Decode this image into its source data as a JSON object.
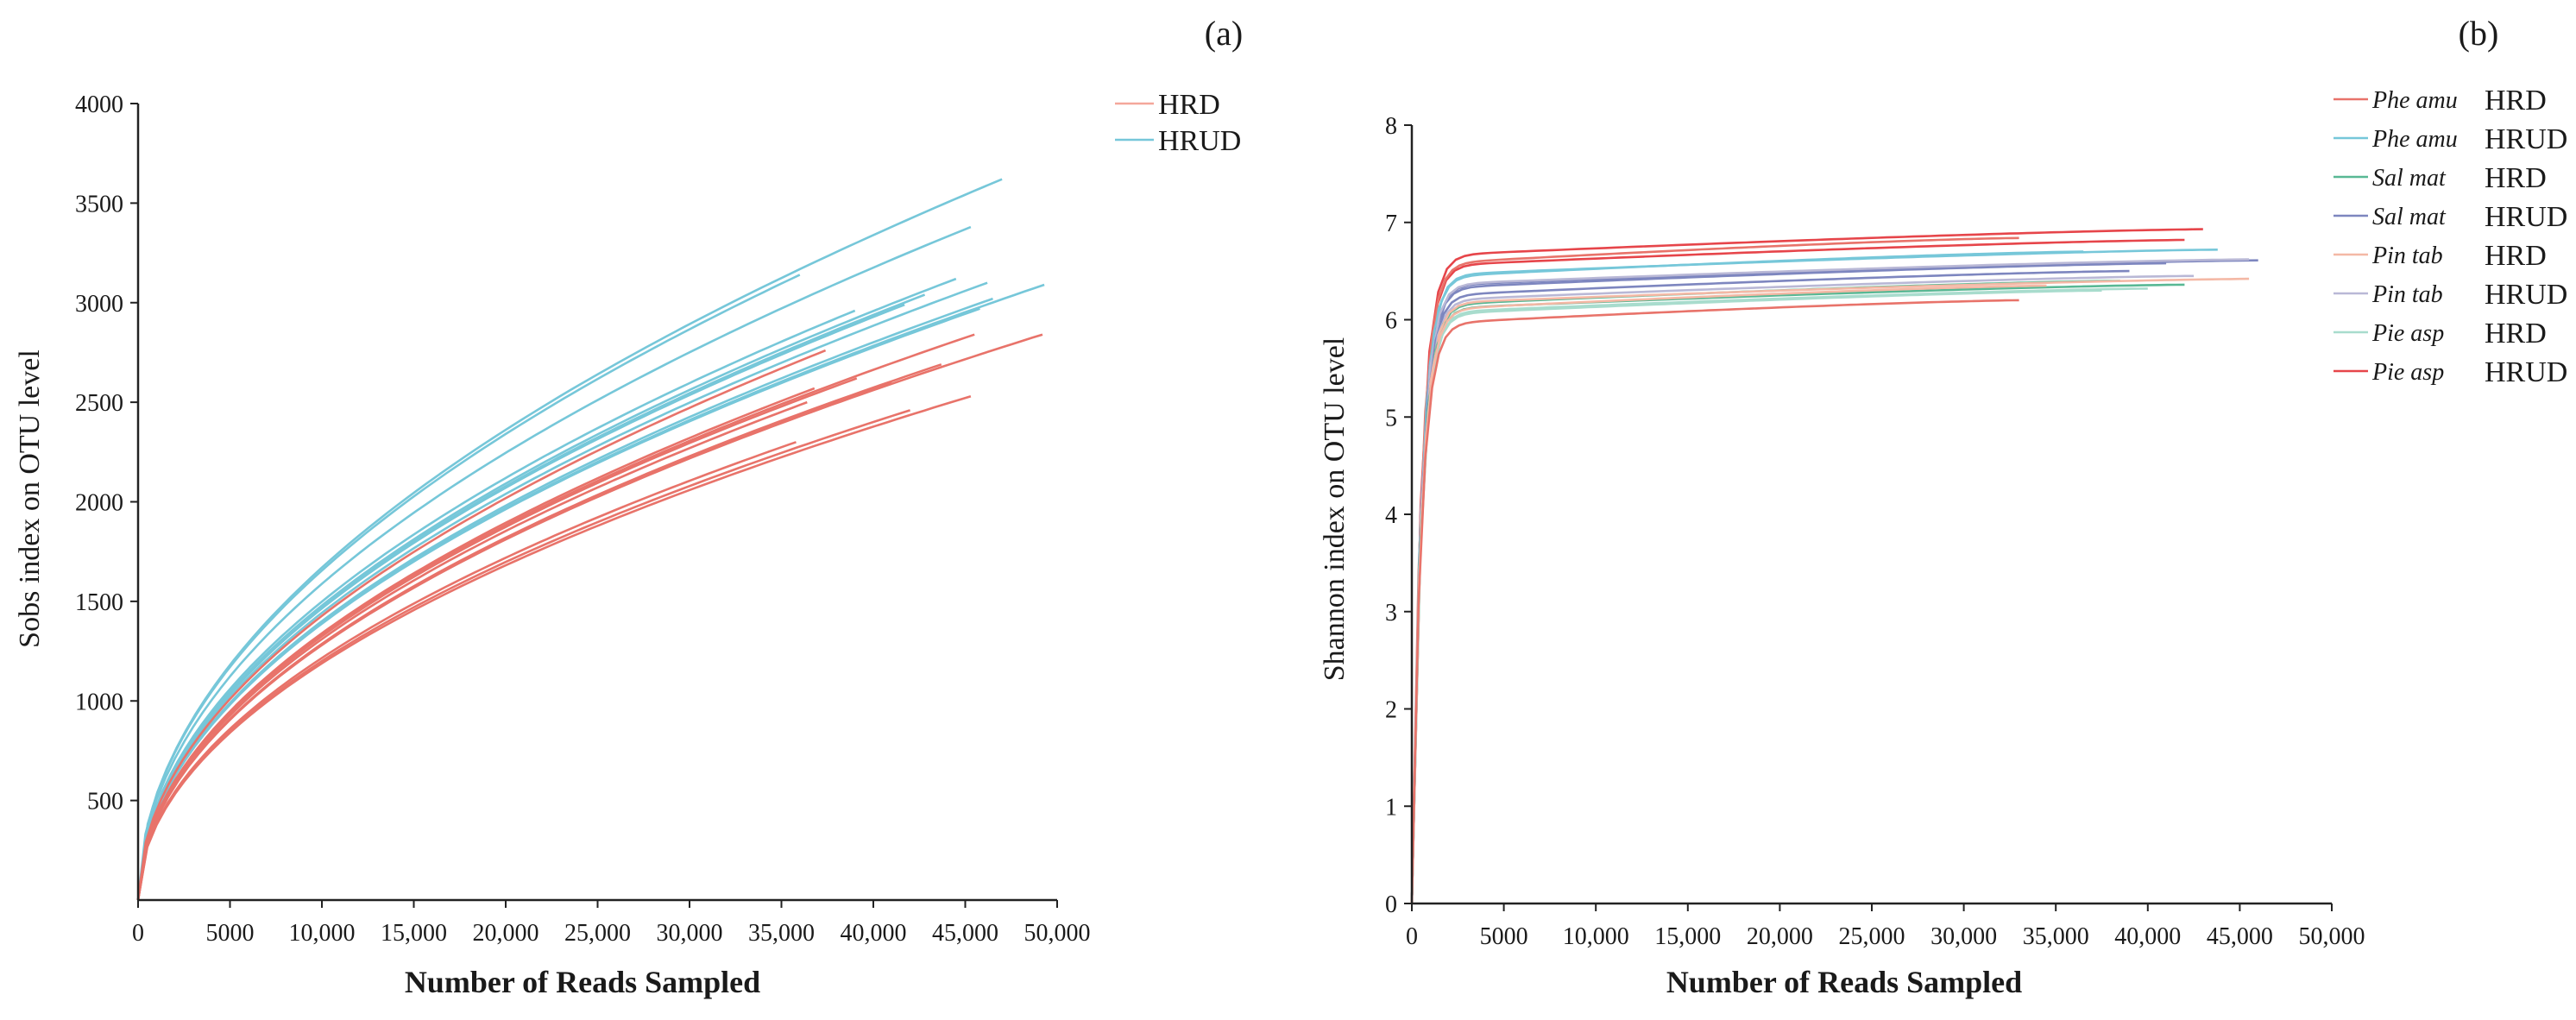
{
  "chart_data": [
    {
      "panel": "(a)",
      "type": "line",
      "xlabel": "Number of Reads Sampled",
      "ylabel": "Sobs index on OTU level",
      "xlim": [
        0,
        50000
      ],
      "ylim": [
        0,
        4000
      ],
      "xticks": [
        0,
        5000,
        10000,
        15000,
        20000,
        25000,
        30000,
        35000,
        40000,
        45000,
        50000
      ],
      "xtick_labels": [
        "0",
        "5000",
        "10,000",
        "15,000",
        "20,000",
        "25,000",
        "30,000",
        "35,000",
        "40,000",
        "45,000",
        "50,000"
      ],
      "yticks": [
        500,
        1000,
        1500,
        2000,
        2500,
        3000,
        3500,
        4000
      ],
      "ytick_labels": [
        "500",
        "1000",
        "1500",
        "2000",
        "2500",
        "3000",
        "3500",
        "4000"
      ],
      "legend": [
        {
          "label": "HRD",
          "color": "#f4a79a"
        },
        {
          "label": "HRUD",
          "color": "#76c7d9"
        }
      ],
      "legend_position": "top-right",
      "series": [
        {
          "name": "HRUD",
          "color": "#76c7d9",
          "x_end": 47000,
          "y_end": 3620
        },
        {
          "name": "HRUD",
          "color": "#76c7d9",
          "x_end": 45300,
          "y_end": 3380
        },
        {
          "name": "HRUD",
          "color": "#76c7d9",
          "x_end": 36000,
          "y_end": 3140
        },
        {
          "name": "HRUD",
          "color": "#76c7d9",
          "x_end": 44500,
          "y_end": 3120
        },
        {
          "name": "HRUD",
          "color": "#76c7d9",
          "x_end": 49300,
          "y_end": 3090
        },
        {
          "name": "HRUD",
          "color": "#76c7d9",
          "x_end": 46200,
          "y_end": 3100
        },
        {
          "name": "HRUD",
          "color": "#76c7d9",
          "x_end": 42800,
          "y_end": 3040
        },
        {
          "name": "HRUD",
          "color": "#76c7d9",
          "x_end": 46500,
          "y_end": 3020
        },
        {
          "name": "HRUD",
          "color": "#76c7d9",
          "x_end": 41700,
          "y_end": 2990
        },
        {
          "name": "HRUD",
          "color": "#76c7d9",
          "x_end": 39000,
          "y_end": 2960
        },
        {
          "name": "HRUD",
          "color": "#76c7d9",
          "x_end": 40200,
          "y_end": 2940
        },
        {
          "name": "HRUD",
          "color": "#76c7d9",
          "x_end": 45800,
          "y_end": 2970
        },
        {
          "name": "HRD",
          "color": "#e8736a",
          "x_end": 49200,
          "y_end": 2840
        },
        {
          "name": "HRD",
          "color": "#e8736a",
          "x_end": 45500,
          "y_end": 2840
        },
        {
          "name": "HRD",
          "color": "#e8736a",
          "x_end": 37400,
          "y_end": 2760
        },
        {
          "name": "HRD",
          "color": "#e8736a",
          "x_end": 43700,
          "y_end": 2690
        },
        {
          "name": "HRD",
          "color": "#e8736a",
          "x_end": 39100,
          "y_end": 2620
        },
        {
          "name": "HRD",
          "color": "#e8736a",
          "x_end": 36800,
          "y_end": 2570
        },
        {
          "name": "HRD",
          "color": "#e8736a",
          "x_end": 41000,
          "y_end": 2600
        },
        {
          "name": "HRD",
          "color": "#e8736a",
          "x_end": 45300,
          "y_end": 2530
        },
        {
          "name": "HRD",
          "color": "#e8736a",
          "x_end": 36400,
          "y_end": 2500
        },
        {
          "name": "HRD",
          "color": "#e8736a",
          "x_end": 42000,
          "y_end": 2460
        },
        {
          "name": "HRD",
          "color": "#e8736a",
          "x_end": 35800,
          "y_end": 2300
        }
      ]
    },
    {
      "panel": "(b)",
      "type": "line",
      "xlabel": "Number of Reads Sampled",
      "ylabel": "Shannon index on OTU level",
      "xlim": [
        0,
        50000
      ],
      "ylim": [
        0,
        8
      ],
      "xticks": [
        0,
        5000,
        10000,
        15000,
        20000,
        25000,
        30000,
        35000,
        40000,
        45000,
        50000
      ],
      "xtick_labels": [
        "0",
        "5000",
        "10,000",
        "15,000",
        "20,000",
        "25,000",
        "30,000",
        "35,000",
        "40,000",
        "45,000",
        "50,000"
      ],
      "yticks": [
        0,
        1,
        2,
        3,
        4,
        5,
        6,
        7,
        8
      ],
      "ytick_labels": [
        "0",
        "1",
        "2",
        "3",
        "4",
        "5",
        "6",
        "7",
        "8"
      ],
      "legend": [
        {
          "species": "Phe amu",
          "group": "HRD",
          "color": "#e8736a"
        },
        {
          "species": "Phe amu",
          "group": "HRUD",
          "color": "#76c7d9"
        },
        {
          "species": "Sal mat",
          "group": "HRD",
          "color": "#58b894"
        },
        {
          "species": "Sal mat",
          "group": "HRUD",
          "color": "#7d86bf"
        },
        {
          "species": "Pin tab",
          "group": "HRD",
          "color": "#f4b8a5"
        },
        {
          "species": "Pin tab",
          "group": "HRUD",
          "color": "#b9b8d6"
        },
        {
          "species": "Pie asp",
          "group": "HRD",
          "color": "#a8dccd"
        },
        {
          "species": "Pie asp",
          "group": "HRUD",
          "color": "#e6454a"
        }
      ],
      "legend_position": "top-right",
      "series": [
        {
          "name": "Pie asp HRUD",
          "color": "#e6454a",
          "x_end": 43000,
          "y_end": 6.93
        },
        {
          "name": "Pie asp HRUD",
          "color": "#e6454a",
          "x_end": 42000,
          "y_end": 6.82
        },
        {
          "name": "Phe amu HRD",
          "color": "#e8736a",
          "x_end": 33000,
          "y_end": 6.84
        },
        {
          "name": "Phe amu HRUD",
          "color": "#76c7d9",
          "x_end": 43800,
          "y_end": 6.72
        },
        {
          "name": "Phe amu HRUD",
          "color": "#76c7d9",
          "x_end": 36500,
          "y_end": 6.7
        },
        {
          "name": "Sal mat HRUD",
          "color": "#7d86bf",
          "x_end": 46000,
          "y_end": 6.61
        },
        {
          "name": "Sal mat HRUD",
          "color": "#7d86bf",
          "x_end": 41000,
          "y_end": 6.58
        },
        {
          "name": "Pin tab HRUD",
          "color": "#b9b8d6",
          "x_end": 45500,
          "y_end": 6.62
        },
        {
          "name": "Sal mat HRUD",
          "color": "#7d86bf",
          "x_end": 39000,
          "y_end": 6.5
        },
        {
          "name": "Pin tab HRUD",
          "color": "#b9b8d6",
          "x_end": 42500,
          "y_end": 6.45
        },
        {
          "name": "Sal mat HRD",
          "color": "#58b894",
          "x_end": 38500,
          "y_end": 6.4
        },
        {
          "name": "Pin tab HRD",
          "color": "#f4b8a5",
          "x_end": 45500,
          "y_end": 6.42
        },
        {
          "name": "Sal mat HRD",
          "color": "#58b894",
          "x_end": 42000,
          "y_end": 6.36
        },
        {
          "name": "Pie asp HRD",
          "color": "#a8dccd",
          "x_end": 40000,
          "y_end": 6.32
        },
        {
          "name": "Pie asp HRD",
          "color": "#a8dccd",
          "x_end": 37500,
          "y_end": 6.3
        },
        {
          "name": "Pin tab HRD",
          "color": "#f4b8a5",
          "x_end": 34500,
          "y_end": 6.35
        },
        {
          "name": "Phe amu HRD",
          "color": "#e8736a",
          "x_end": 33000,
          "y_end": 6.2
        }
      ]
    }
  ]
}
